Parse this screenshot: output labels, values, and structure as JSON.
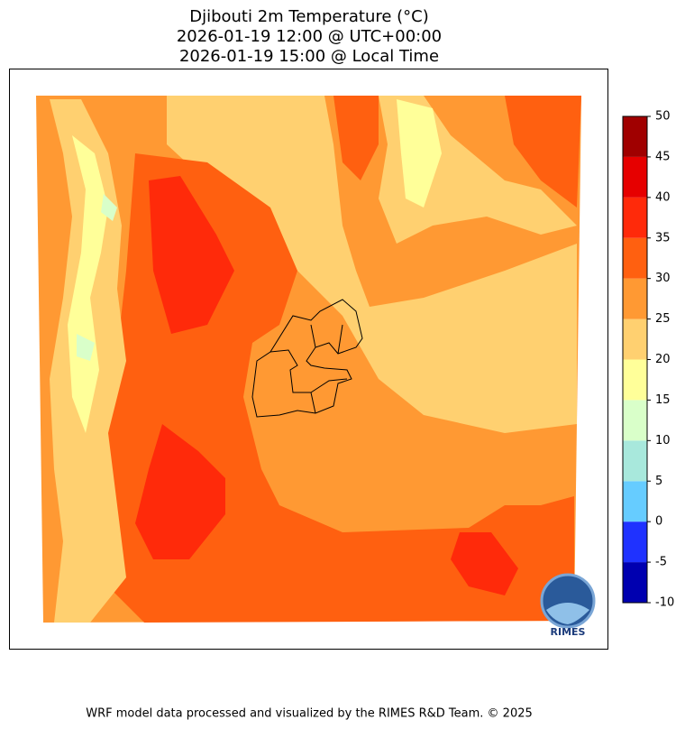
{
  "title": [
    "Djibouti 2m Temperature (°C)",
    "2026-01-19 12:00 @ UTC+00:00",
    "2026-01-19 15:00 @ Local Time"
  ],
  "colorbar": {
    "levels": [
      -10,
      -5,
      0,
      5,
      10,
      15,
      20,
      25,
      30,
      35,
      40,
      45,
      50
    ],
    "colors": [
      "#0000b0",
      "#1f32ff",
      "#66ccff",
      "#a8e8dc",
      "#d9ffc9",
      "#ffff99",
      "#ffd070",
      "#ff9933",
      "#ff6010",
      "#ff2a0a",
      "#e60000",
      "#a00000"
    ]
  },
  "logo": "RIMES",
  "footer": "WRF model data processed and visualized by the RIMES R&D Team. © 2025"
}
